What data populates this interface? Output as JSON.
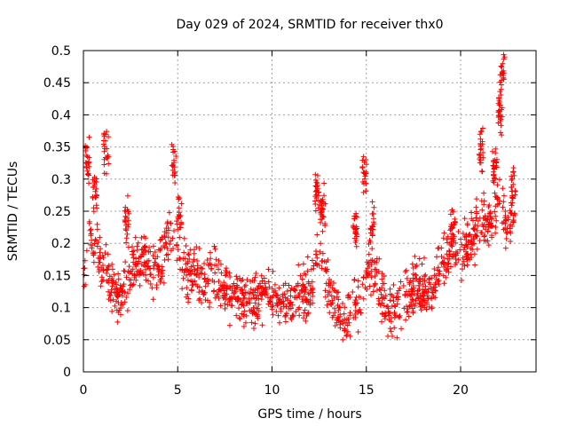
{
  "chart_data": {
    "type": "scatter",
    "title": "Day 029 of 2024, SRMTID for receiver thx0",
    "xlabel": "GPS time / hours",
    "ylabel": "SRMTID / TECUs",
    "xlim": [
      0,
      24
    ],
    "ylim": [
      0,
      0.5
    ],
    "x_ticks": [
      0,
      5,
      10,
      15,
      20
    ],
    "y_ticks": [
      0,
      0.05,
      0.1,
      0.15,
      0.2,
      0.25,
      0.3,
      0.35,
      0.4,
      0.45,
      0.5
    ],
    "x_tick_labels": [
      "0",
      "5",
      "10",
      "15",
      "20"
    ],
    "y_tick_labels": [
      "0",
      "0.05",
      "0.1",
      "0.15",
      "0.2",
      "0.25",
      "0.3",
      "0.35",
      "0.4",
      "0.45",
      "0.5"
    ],
    "grid": true,
    "marker": "plus",
    "series_color": "#ff0000",
    "trend": [
      [
        0.0,
        0.13
      ],
      [
        0.3,
        0.22
      ],
      [
        0.6,
        0.2
      ],
      [
        1.0,
        0.17
      ],
      [
        1.5,
        0.13
      ],
      [
        2.0,
        0.11
      ],
      [
        2.5,
        0.15
      ],
      [
        3.0,
        0.18
      ],
      [
        3.5,
        0.17
      ],
      [
        4.0,
        0.16
      ],
      [
        4.5,
        0.22
      ],
      [
        5.0,
        0.2
      ],
      [
        5.5,
        0.15
      ],
      [
        6.0,
        0.15
      ],
      [
        6.5,
        0.14
      ],
      [
        7.0,
        0.15
      ],
      [
        7.5,
        0.13
      ],
      [
        8.0,
        0.12
      ],
      [
        9.0,
        0.11
      ],
      [
        10.0,
        0.12
      ],
      [
        11.0,
        0.11
      ],
      [
        12.0,
        0.13
      ],
      [
        12.5,
        0.2
      ],
      [
        13.0,
        0.13
      ],
      [
        13.5,
        0.09
      ],
      [
        14.0,
        0.08
      ],
      [
        14.5,
        0.1
      ],
      [
        15.0,
        0.15
      ],
      [
        15.5,
        0.16
      ],
      [
        16.0,
        0.1
      ],
      [
        16.5,
        0.09
      ],
      [
        17.0,
        0.11
      ],
      [
        17.5,
        0.13
      ],
      [
        18.0,
        0.13
      ],
      [
        18.5,
        0.12
      ],
      [
        19.0,
        0.17
      ],
      [
        19.5,
        0.19
      ],
      [
        20.0,
        0.18
      ],
      [
        20.5,
        0.2
      ],
      [
        21.0,
        0.24
      ],
      [
        21.5,
        0.23
      ],
      [
        22.0,
        0.27
      ],
      [
        22.5,
        0.22
      ],
      [
        22.9,
        0.25
      ]
    ],
    "bursts": [
      [
        0.2,
        0.33
      ],
      [
        0.6,
        0.28
      ],
      [
        1.2,
        0.34
      ],
      [
        2.3,
        0.24
      ],
      [
        4.8,
        0.32
      ],
      [
        5.1,
        0.24
      ],
      [
        12.4,
        0.28
      ],
      [
        12.7,
        0.25
      ],
      [
        14.9,
        0.31
      ],
      [
        14.4,
        0.22
      ],
      [
        15.3,
        0.22
      ],
      [
        19.6,
        0.22
      ],
      [
        21.1,
        0.35
      ],
      [
        21.8,
        0.32
      ],
      [
        22.2,
        0.47
      ],
      [
        22.1,
        0.4
      ],
      [
        22.8,
        0.29
      ]
    ]
  }
}
